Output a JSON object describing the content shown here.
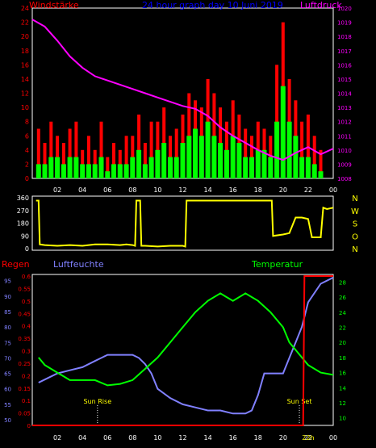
{
  "panels": {
    "wind": {
      "title": "24 hour graph day  10 Juni 2019",
      "left_label": "Windstärke",
      "right_label": "Luftdruck",
      "left_ticks": [
        "0",
        "2",
        "4",
        "6",
        "8",
        "10",
        "12",
        "14",
        "16",
        "18",
        "20",
        "22",
        "24"
      ],
      "right_ticks": [
        "1008",
        "1009",
        "1010",
        "1011",
        "1012",
        "1013",
        "1014",
        "1015",
        "1016",
        "1017",
        "1018",
        "1019",
        "1020"
      ],
      "x_ticks": [
        "02",
        "04",
        "06",
        "08",
        "10",
        "12",
        "14",
        "16",
        "18",
        "20",
        "22",
        "00"
      ]
    },
    "direction": {
      "left_ticks": [
        "0",
        "90",
        "180",
        "270",
        "360"
      ],
      "right_ticks": [
        "N",
        "W",
        "S",
        "O",
        "N"
      ]
    },
    "weather": {
      "rain_label": "Regen",
      "humidity_label": "Luftfeuchte",
      "temp_label": "Temperatur",
      "humidity_ticks": [
        "50",
        "55",
        "60",
        "65",
        "70",
        "75",
        "80",
        "85",
        "90",
        "95"
      ],
      "rain_ticks": [
        "0",
        "0.05",
        "0.1",
        "0.15",
        "0.2",
        "0.25",
        "0.3",
        "0.35",
        "0.4",
        "0.45",
        "0.5",
        "0.55",
        "0.6"
      ],
      "temp_ticks": [
        "10",
        "12",
        "14",
        "16",
        "18",
        "20",
        "22",
        "24",
        "26",
        "28"
      ],
      "x_ticks": [
        "02",
        "04",
        "06",
        "08",
        "10",
        "12",
        "14",
        "16",
        "18",
        "20",
        "22",
        "00"
      ],
      "sunrise_label": "Sun Rise",
      "sunset_label": "Sun Set",
      "sunrise_time": "",
      "sunset_time": "",
      "now_label": "22h"
    }
  },
  "colors": {
    "background": "#000000",
    "frame": "#ffffff",
    "wind_gust": "#ff0000",
    "wind_avg": "#00ff00",
    "pressure": "#ff00ff",
    "direction": "#ffff00",
    "rain": "#ff0000",
    "humidity": "#8080ff",
    "temperature": "#00ff00",
    "left_axis_text": "#ff0000",
    "right_axis_text": "#ff00ff",
    "dir_text": "#ffff00",
    "humidity_text": "#8080ff",
    "temp_text": "#00ff00",
    "title_text": "#0000ff"
  },
  "chart_data": [
    {
      "type": "bar",
      "title": "24 hour graph day  10 Juni 2019",
      "xlim": [
        0,
        24
      ],
      "ylim": [
        0,
        24
      ],
      "y2lim": [
        1008,
        1020
      ],
      "series": [
        {
          "name": "Windstärke",
          "axis": "left",
          "x": [
            0.5,
            1.0,
            1.5,
            2.0,
            2.5,
            3.0,
            3.5,
            4.0,
            4.5,
            5.0,
            5.5,
            6.0,
            6.5,
            7.0,
            7.5,
            8.0,
            8.5,
            9.0,
            9.5,
            10.0,
            10.5,
            11.0,
            11.5,
            12.0,
            12.5,
            13.0,
            13.5,
            14.0,
            14.5,
            15.0,
            15.5,
            16.0,
            16.5,
            17.0,
            17.5,
            18.0,
            18.5,
            19.0,
            19.5,
            20.0,
            20.5,
            21.0,
            21.5,
            22.0,
            22.5,
            23.0
          ],
          "gust": [
            7,
            5,
            8,
            6,
            5,
            7,
            8,
            4,
            6,
            4,
            8,
            3,
            5,
            4,
            6,
            6,
            9,
            5,
            8,
            8,
            10,
            6,
            7,
            9,
            12,
            11,
            10,
            14,
            12,
            10,
            8,
            11,
            9,
            7,
            6,
            8,
            7,
            6,
            16,
            22,
            14,
            11,
            8,
            9,
            6,
            4
          ],
          "avg": [
            2,
            2,
            3,
            3,
            2,
            3,
            3,
            2,
            2,
            2,
            3,
            1,
            2,
            2,
            2,
            3,
            4,
            2,
            3,
            4,
            5,
            3,
            3,
            5,
            6,
            7,
            6,
            8,
            6,
            5,
            4,
            6,
            5,
            3,
            3,
            4,
            4,
            3,
            8,
            13,
            8,
            6,
            3,
            3,
            2,
            1
          ]
        },
        {
          "name": "Luftdruck",
          "axis": "right",
          "x": [
            0,
            1,
            2,
            3,
            4,
            5,
            6,
            7,
            8,
            9,
            10,
            11,
            12,
            13,
            14,
            15,
            16,
            17,
            18,
            19,
            20,
            21,
            22,
            23,
            24
          ],
          "y": [
            1019.2,
            1018.7,
            1017.7,
            1016.6,
            1015.8,
            1015.2,
            1014.9,
            1014.6,
            1014.3,
            1014.0,
            1013.7,
            1013.4,
            1013.1,
            1012.9,
            1012.4,
            1011.6,
            1011.0,
            1010.5,
            1010.0,
            1009.6,
            1009.3,
            1009.8,
            1010.2,
            1009.7,
            1010.1
          ]
        }
      ]
    },
    {
      "type": "line",
      "title": "",
      "xlim": [
        0,
        24
      ],
      "ylim": [
        0,
        360
      ],
      "series": [
        {
          "name": "",
          "x": [
            0.3,
            0.5,
            0.6,
            1.0,
            2.0,
            3.0,
            4.0,
            5.0,
            6.0,
            7.0,
            7.5,
            8.0,
            8.2,
            8.3,
            8.6,
            8.7,
            9.0,
            10.0,
            11.0,
            12.0,
            12.2,
            12.3,
            13.0,
            14.0,
            15.0,
            16.0,
            17.0,
            18.0,
            19.0,
            19.1,
            19.2,
            20.0,
            20.5,
            21.0,
            21.5,
            22.0,
            22.3,
            22.4,
            23.0,
            23.2,
            23.5,
            24.0
          ],
          "y": [
            340,
            340,
            30,
            25,
            20,
            25,
            20,
            30,
            30,
            25,
            30,
            25,
            20,
            340,
            340,
            20,
            20,
            15,
            20,
            20,
            15,
            340,
            340,
            340,
            340,
            340,
            340,
            340,
            340,
            340,
            90,
            100,
            110,
            220,
            220,
            210,
            80,
            80,
            80,
            290,
            280,
            290
          ]
        }
      ]
    },
    {
      "type": "line",
      "title": "",
      "xlim": [
        0,
        24
      ],
      "ylim": [
        50,
        97
      ],
      "y2lim": [
        0,
        0.6
      ],
      "y3lim": [
        9,
        29
      ],
      "series": [
        {
          "name": "Regen",
          "axis": "rain",
          "x": [
            0,
            21.6,
            21.7,
            24
          ],
          "y": [
            0,
            0,
            0.6,
            0.6
          ]
        },
        {
          "name": "Luftfeuchte",
          "axis": "humidity",
          "x": [
            0.5,
            1,
            2,
            3,
            4,
            5,
            6,
            7,
            8,
            8.5,
            9,
            9.5,
            10,
            11,
            12,
            13,
            14,
            15,
            16,
            17,
            17.5,
            18,
            18.5,
            19,
            20,
            20.5,
            21,
            21.5,
            22,
            23,
            24
          ],
          "y": [
            62,
            63,
            65,
            66,
            67,
            69,
            71,
            71,
            71,
            70,
            68,
            65,
            60,
            57,
            55,
            54,
            53,
            53,
            52,
            52,
            53,
            58,
            65,
            65,
            65,
            70,
            75,
            80,
            88,
            94,
            96
          ]
        },
        {
          "name": "Temperatur",
          "axis": "temp",
          "x": [
            0.5,
            1,
            2,
            3,
            4,
            5,
            6,
            7,
            8,
            9,
            10,
            11,
            12,
            13,
            14,
            15,
            15.5,
            16,
            17,
            18,
            19,
            20,
            20.5,
            21,
            22,
            23,
            24
          ],
          "y": [
            18,
            17,
            16,
            15,
            15,
            15,
            14.3,
            14.5,
            15,
            16.5,
            18,
            20,
            22,
            24,
            25.5,
            26.5,
            26,
            25.5,
            26.5,
            25.5,
            24,
            22,
            20,
            19,
            17,
            16,
            15.7
          ]
        }
      ]
    }
  ]
}
